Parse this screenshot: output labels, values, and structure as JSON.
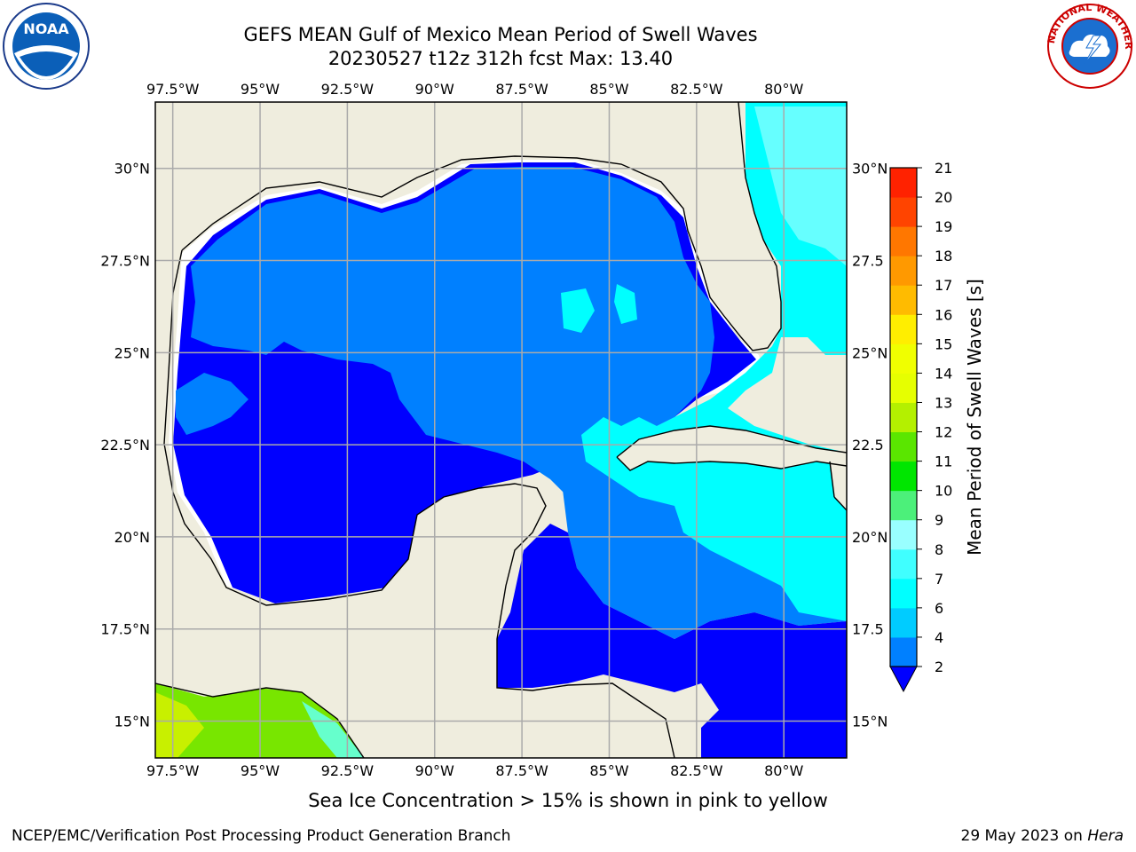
{
  "header": {
    "title_line1": "GEFS MEAN Gulf of Mexico Mean Period of Swell Waves",
    "title_line2": "20230527 t12z 312h fcst   Max: 13.40"
  },
  "map": {
    "lon_labels": [
      "97.5°W",
      "95°W",
      "92.5°W",
      "90°W",
      "87.5°W",
      "85°W",
      "82.5°W",
      "80°W"
    ],
    "lon_values": [
      -97.5,
      -95,
      -92.5,
      -90,
      -87.5,
      -85,
      -82.5,
      -80
    ],
    "lat_labels": [
      "30°N",
      "27.5°N",
      "25°N",
      "22.5°N",
      "20°N",
      "17.5°N",
      "15°N"
    ],
    "lat_values": [
      30,
      27.5,
      25,
      22.5,
      20,
      17.5,
      15
    ],
    "right_lat_labels": [
      "30°N",
      "27.5",
      "25°N",
      "22.5",
      "20°N",
      "17.5",
      "15°N"
    ],
    "lon_range": [
      -98,
      -78.2
    ],
    "lat_range": [
      14,
      31.8
    ],
    "land_color": "#efedde",
    "grid": true
  },
  "colorbar": {
    "label": "Mean Period of Swell Waves [s]",
    "ticks": [
      "2",
      "4",
      "6",
      "7",
      "8",
      "9",
      "10",
      "11",
      "12",
      "13",
      "14",
      "15",
      "16",
      "17",
      "18",
      "19",
      "20",
      "21"
    ],
    "colors": [
      "#0000ff",
      "#0080ff",
      "#00ccff",
      "#00ffff",
      "#40ffff",
      "#99ffff",
      "#4cf07a",
      "#00e600",
      "#5ae600",
      "#b4f000",
      "#e6ff00",
      "#f0ff00",
      "#ffee00",
      "#ffbb00",
      "#ff9900",
      "#ff7700",
      "#ff4400",
      "#ff2200",
      "#ff0000"
    ]
  },
  "note": "Sea Ice Concentration > 15% is shown in pink to yellow",
  "credits": {
    "left": "NCEP/EMC/Verification Post Processing Product Generation Branch",
    "right_prefix": "29 May 2023 on ",
    "right_host": "Hera"
  },
  "logos": {
    "noaa": "NOAA",
    "nws_ring": "NATIONAL WEATHER SERVICE"
  }
}
